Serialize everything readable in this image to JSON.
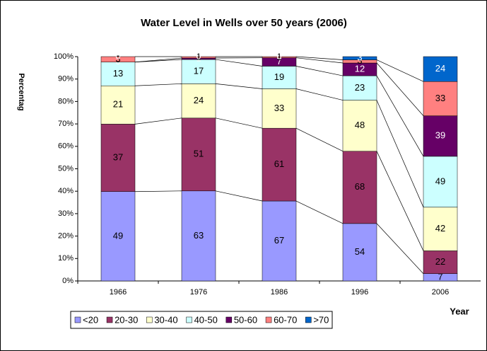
{
  "chart_data": {
    "type": "bar",
    "stacking": "percent",
    "title": "Water Level in Wells over 50 years (2006)",
    "y_label": "Percentag",
    "x_label": "Year",
    "categories": [
      "1966",
      "1976",
      "1986",
      "1996",
      "2006"
    ],
    "series": [
      {
        "name": "<20",
        "color": "#9999ff",
        "values": [
          49,
          63,
          67,
          54,
          7
        ]
      },
      {
        "name": "20-30",
        "color": "#993366",
        "values": [
          37,
          51,
          61,
          68,
          22
        ]
      },
      {
        "name": "30-40",
        "color": "#ffffcc",
        "values": [
          21,
          24,
          33,
          48,
          42
        ]
      },
      {
        "name": "40-50",
        "color": "#ccffff",
        "values": [
          13,
          17,
          19,
          23,
          49
        ]
      },
      {
        "name": "50-60",
        "color": "#660066",
        "values": [
          0,
          1,
          7,
          12,
          39
        ]
      },
      {
        "name": "60-70",
        "color": "#ff8080",
        "values": [
          3,
          1,
          1,
          3,
          33
        ]
      },
      {
        "name": ">70",
        "color": "#0066cc",
        "values": [
          0,
          0,
          0,
          3,
          24
        ]
      }
    ],
    "ylim": [
      0,
      100
    ],
    "yticks": [
      {
        "value": 0,
        "label": "0%"
      },
      {
        "value": 10,
        "label": "10%"
      },
      {
        "value": 20,
        "label": "20%"
      },
      {
        "value": 30,
        "label": "30%"
      },
      {
        "value": 40,
        "label": "40%"
      },
      {
        "value": 50,
        "label": "50%"
      },
      {
        "value": 60,
        "label": "60%"
      },
      {
        "value": 70,
        "label": "70%"
      },
      {
        "value": 80,
        "label": "80%"
      },
      {
        "value": 90,
        "label": "90%"
      },
      {
        "value": 100,
        "label": "100%"
      }
    ],
    "series_lines": true,
    "legend": "bottom"
  }
}
